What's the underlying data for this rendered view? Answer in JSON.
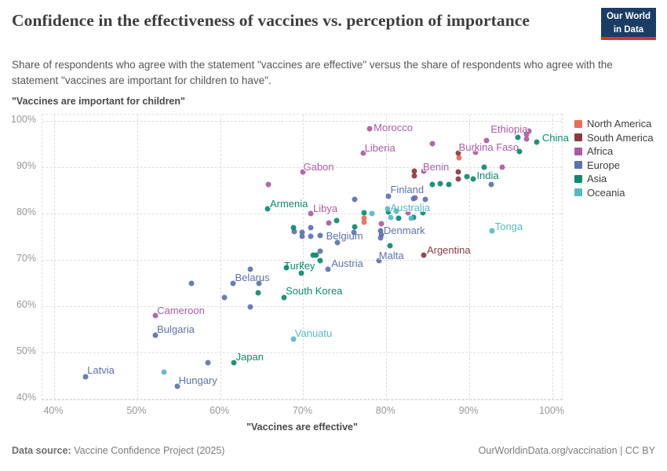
{
  "header": {
    "title": "Confidence in the effectiveness of vaccines vs. perception of importance",
    "subtitle": "Share of respondents who agree with the statement \"vaccines are effective\" versus the share of respondents who agree with the statement \"vaccines are important for children to have\".",
    "logo": {
      "line1": "Our World",
      "line2": "in Data"
    }
  },
  "footer": {
    "source_label": "Data source:",
    "source_text": "Vaccine Confidence Project (2025)",
    "right_text": "OurWorldinData.org/vaccination | CC BY"
  },
  "chart_data": {
    "type": "scatter",
    "title": "Confidence in the effectiveness of vaccines vs. perception of importance",
    "xlabel": "\"Vaccines are effective\"",
    "ylabel": "\"Vaccines are important for children\"",
    "xlim": [
      40,
      100
    ],
    "ylim": [
      40,
      100
    ],
    "xticks": [
      40,
      50,
      60,
      70,
      80,
      90,
      100
    ],
    "yticks": [
      40,
      50,
      60,
      70,
      80,
      90,
      100
    ],
    "tick_format": "%",
    "grid": true,
    "legend_position": "right",
    "legend": [
      {
        "label": "North America",
        "color": "#e56e5a"
      },
      {
        "label": "South America",
        "color": "#8b3a42"
      },
      {
        "label": "Africa",
        "color": "#a85ca3"
      },
      {
        "label": "Europe",
        "color": "#5e73a8"
      },
      {
        "label": "Asia",
        "color": "#0e8870"
      },
      {
        "label": "Oceania",
        "color": "#58b9c4"
      }
    ],
    "series": [
      {
        "name": "North America",
        "color": "#e56e5a",
        "points": [
          {
            "x": 77.3,
            "y": 78.9
          },
          {
            "x": 77.3,
            "y": 78.1
          },
          {
            "x": 88.8,
            "y": 92.1
          }
        ]
      },
      {
        "name": "South America",
        "color": "#8b3a42",
        "points": [
          {
            "x": 84.5,
            "y": 71.0,
            "label": "Argentina",
            "dx": 4,
            "dy": -14
          },
          {
            "x": 83.4,
            "y": 89.1
          },
          {
            "x": 83.4,
            "y": 88.2
          },
          {
            "x": 88.7,
            "y": 88.9
          },
          {
            "x": 88.7,
            "y": 87.4
          },
          {
            "x": 88.7,
            "y": 93.0
          }
        ]
      },
      {
        "name": "Africa",
        "color": "#a85ca3",
        "points": [
          {
            "x": 78.0,
            "y": 98.3,
            "label": "Morocco",
            "dx": 5,
            "dy": -9
          },
          {
            "x": 77.2,
            "y": 93.1,
            "label": "Liberia",
            "dx": 2,
            "dy": -14
          },
          {
            "x": 90.7,
            "y": 93.3,
            "label": "Burkina Faso",
            "dx": -21,
            "dy": -14
          },
          {
            "x": 97.2,
            "y": 97.8,
            "label": "Ethiopia",
            "dx": -2,
            "dy": -10,
            "anchor": "end"
          },
          {
            "x": 84.5,
            "y": 89.2,
            "label": "Benin",
            "dx": -1,
            "dy": -13
          },
          {
            "x": 70.0,
            "y": 89.0,
            "label": "Gabon",
            "dx": 0,
            "dy": -14
          },
          {
            "x": 70.9,
            "y": 80.0,
            "label": "Libya",
            "dx": 3,
            "dy": -14
          },
          {
            "x": 52.2,
            "y": 58.0,
            "label": "Cameroon",
            "dx": 2,
            "dy": -14
          },
          {
            "x": 65.8,
            "y": 86.3
          },
          {
            "x": 73.1,
            "y": 77.9
          },
          {
            "x": 79.4,
            "y": 77.8
          },
          {
            "x": 82.6,
            "y": 80.1
          },
          {
            "x": 83.5,
            "y": 83.4
          },
          {
            "x": 85.5,
            "y": 95.1
          },
          {
            "x": 92.1,
            "y": 95.8
          },
          {
            "x": 94.0,
            "y": 90.0
          },
          {
            "x": 96.9,
            "y": 97.1
          },
          {
            "x": 96.9,
            "y": 96.1
          }
        ]
      },
      {
        "name": "Europe",
        "color": "#5e73a8",
        "points": [
          {
            "x": 43.8,
            "y": 44.7,
            "label": "Latvia",
            "dx": 2,
            "dy": -16
          },
          {
            "x": 54.8,
            "y": 42.7,
            "label": "Hungary",
            "dx": 2,
            "dy": -15
          },
          {
            "x": 52.2,
            "y": 53.7,
            "label": "Bulgaria",
            "dx": 2,
            "dy": -15
          },
          {
            "x": 61.5,
            "y": 64.9,
            "label": "Belarus",
            "dx": 3,
            "dy": -15
          },
          {
            "x": 73.0,
            "y": 67.9,
            "label": "Austria",
            "dx": 4,
            "dy": -15
          },
          {
            "x": 72.0,
            "y": 75.2,
            "label": "Belgium",
            "dx": 8,
            "dy": -7
          },
          {
            "x": 79.1,
            "y": 69.9,
            "label": "Malta",
            "dx": 0,
            "dy": -14
          },
          {
            "x": 79.3,
            "y": 76.2,
            "label": "Denmark",
            "dx": 4,
            "dy": -8
          },
          {
            "x": 80.3,
            "y": 83.7,
            "label": "Finland",
            "dx": 2,
            "dy": -16
          },
          {
            "x": 58.5,
            "y": 47.8
          },
          {
            "x": 56.5,
            "y": 64.9
          },
          {
            "x": 60.5,
            "y": 61.9
          },
          {
            "x": 63.6,
            "y": 59.8
          },
          {
            "x": 64.7,
            "y": 64.9
          },
          {
            "x": 63.6,
            "y": 68.0
          },
          {
            "x": 72.0,
            "y": 71.8
          },
          {
            "x": 74.1,
            "y": 73.8
          },
          {
            "x": 76.1,
            "y": 76.0
          },
          {
            "x": 68.9,
            "y": 76.1
          },
          {
            "x": 69.9,
            "y": 75.9
          },
          {
            "x": 69.9,
            "y": 75.1
          },
          {
            "x": 70.9,
            "y": 75.1
          },
          {
            "x": 70.9,
            "y": 76.9
          },
          {
            "x": 79.4,
            "y": 75.4
          },
          {
            "x": 79.3,
            "y": 74.7
          },
          {
            "x": 76.2,
            "y": 83.1
          },
          {
            "x": 84.7,
            "y": 83.1
          },
          {
            "x": 83.3,
            "y": 83.2
          },
          {
            "x": 92.6,
            "y": 86.2
          }
        ]
      },
      {
        "name": "Asia",
        "color": "#0e8870",
        "points": [
          {
            "x": 61.6,
            "y": 47.8,
            "label": "Japan",
            "dx": 3,
            "dy": -15
          },
          {
            "x": 67.7,
            "y": 61.8,
            "label": "South Korea",
            "dx": 2,
            "dy": -16
          },
          {
            "x": 69.9,
            "y": 68.9,
            "label": "Turkey",
            "dx": 16,
            "dy": -6,
            "anchor": "end"
          },
          {
            "x": 65.7,
            "y": 81.0,
            "label": "Armenia",
            "dx": 3,
            "dy": -14
          },
          {
            "x": 90.5,
            "y": 87.4,
            "label": "India",
            "dx": 4,
            "dy": -12
          },
          {
            "x": 98.1,
            "y": 95.4,
            "label": "China",
            "dx": 7,
            "dy": -13
          },
          {
            "x": 64.6,
            "y": 62.9
          },
          {
            "x": 68.0,
            "y": 68.3
          },
          {
            "x": 69.8,
            "y": 67.1
          },
          {
            "x": 71.2,
            "y": 71.0
          },
          {
            "x": 71.6,
            "y": 71.0
          },
          {
            "x": 72.0,
            "y": 69.9
          },
          {
            "x": 68.8,
            "y": 76.9
          },
          {
            "x": 74.0,
            "y": 78.4
          },
          {
            "x": 76.2,
            "y": 77.1
          },
          {
            "x": 77.3,
            "y": 80.2
          },
          {
            "x": 80.3,
            "y": 80.3
          },
          {
            "x": 80.4,
            "y": 73.1
          },
          {
            "x": 81.5,
            "y": 78.9
          },
          {
            "x": 83.3,
            "y": 79.1
          },
          {
            "x": 84.4,
            "y": 80.2
          },
          {
            "x": 85.5,
            "y": 86.3
          },
          {
            "x": 86.5,
            "y": 86.4
          },
          {
            "x": 87.5,
            "y": 86.3
          },
          {
            "x": 89.7,
            "y": 88.0
          },
          {
            "x": 91.8,
            "y": 90.0
          },
          {
            "x": 95.8,
            "y": 96.4
          },
          {
            "x": 96.0,
            "y": 93.4
          }
        ]
      },
      {
        "name": "Oceania",
        "color": "#58b9c4",
        "points": [
          {
            "x": 68.8,
            "y": 52.8,
            "label": "Vanuatu",
            "dx": 2,
            "dy": -15
          },
          {
            "x": 92.7,
            "y": 76.2,
            "label": "Tonga",
            "dx": 4,
            "dy": -13
          },
          {
            "x": 80.2,
            "y": 81.0,
            "label": "Australia",
            "dx": 3,
            "dy": -9
          },
          {
            "x": 53.2,
            "y": 45.8
          },
          {
            "x": 78.3,
            "y": 80.0
          },
          {
            "x": 80.5,
            "y": 79.1
          },
          {
            "x": 81.2,
            "y": 80.5
          },
          {
            "x": 83.0,
            "y": 78.9
          }
        ]
      }
    ]
  }
}
